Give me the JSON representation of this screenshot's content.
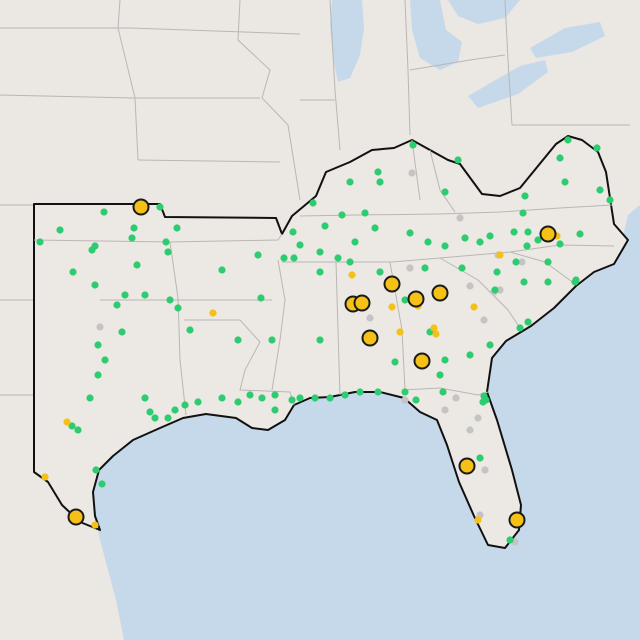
{
  "map": {
    "colors": {
      "water": "#c6d9ea",
      "land": "#ebe7e3",
      "region_fill": "#ece8e4",
      "region_outline": "#111111",
      "state_border": "#b9b6b4",
      "marker_green": "#2ecc71",
      "marker_yellow": "#f5c116",
      "marker_gray": "#c4c4c4",
      "marker_large_stroke": "#1a1a1a"
    }
  }
}
